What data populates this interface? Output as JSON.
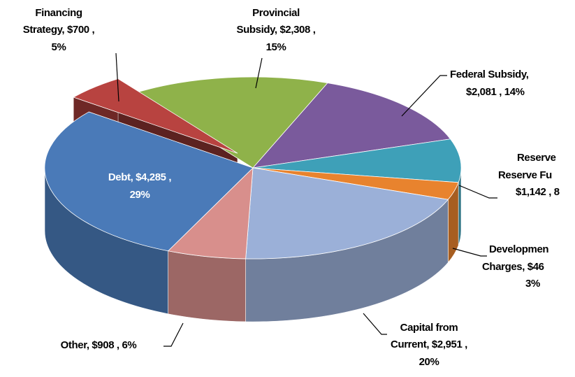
{
  "chart_data": {
    "type": "pie3d",
    "values": [
      2308,
      2081,
      1142,
      460,
      2951,
      908,
      4285,
      700
    ],
    "value_labels": [
      [
        "Provincial",
        "Subsidy, $2,308 ,",
        "15%"
      ],
      [
        "Federal Subsidy,",
        "$2,081 , 14%"
      ],
      [
        "Reserve",
        "Reserve Fu",
        "$1,142 , 8"
      ],
      [
        "Developmen",
        "Charges, $46",
        "3%"
      ],
      [
        "Capital from",
        "Current, $2,951 ,",
        "20%"
      ],
      [
        "Other, $908 , 6%"
      ],
      [
        "Debt, $4,285 ,",
        "29%"
      ],
      [
        "Financing",
        "Strategy, $700 ,",
        "5%"
      ]
    ],
    "colors": [
      "#8fb24a",
      "#7a5a9c",
      "#3ea0b8",
      "#e8832e",
      "#9bb0d8",
      "#d88f8c",
      "#4a7ab8",
      "#b84340"
    ],
    "explode": [
      0,
      0,
      0,
      0,
      0,
      0,
      0,
      1
    ]
  }
}
